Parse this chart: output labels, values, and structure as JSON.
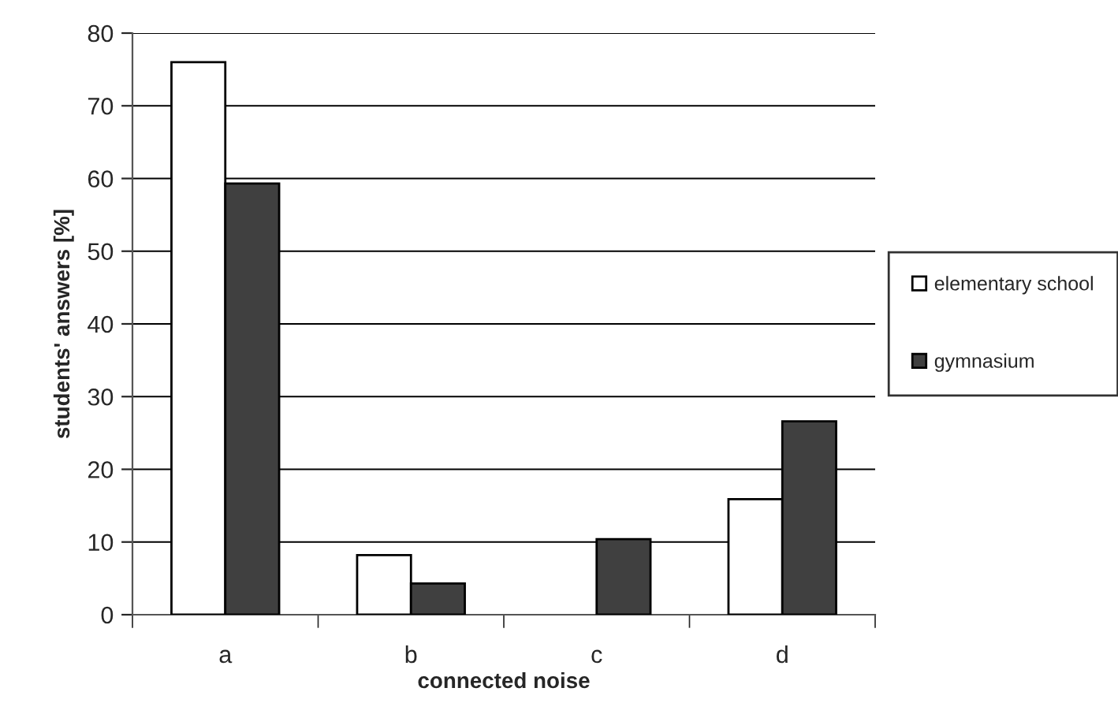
{
  "chart_data": {
    "type": "bar",
    "xlabel": "connected noise",
    "ylabel": "students' answers [%]",
    "categories": [
      "a",
      "b",
      "c",
      "d"
    ],
    "series": [
      {
        "name": "elementary school",
        "color": "#ffffff",
        "values": [
          76,
          8.2,
          null,
          15.9
        ]
      },
      {
        "name": "gymnasium",
        "color": "#404040",
        "values": [
          59.3,
          4.3,
          10.4,
          26.6
        ]
      }
    ],
    "ylim": [
      0,
      80
    ],
    "yticks": [
      0,
      10,
      20,
      30,
      40,
      50,
      60,
      70,
      80
    ],
    "grid": "y",
    "legend": "right"
  }
}
